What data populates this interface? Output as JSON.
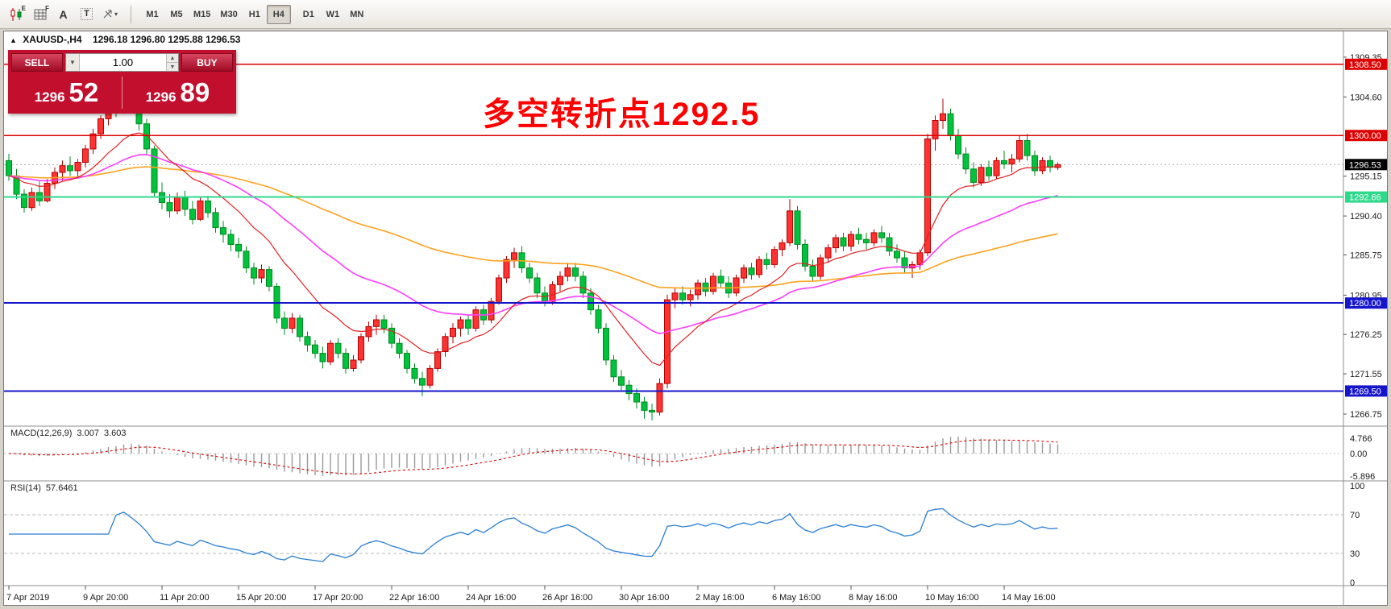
{
  "toolbar": {
    "tools": [
      {
        "name": "indicators-window-icon",
        "type": "candles",
        "sup": "E"
      },
      {
        "name": "grid-window-icon",
        "type": "grid",
        "sup": "F"
      },
      {
        "name": "font-tool-icon",
        "type": "letter",
        "glyph": "A"
      },
      {
        "name": "text-tool-icon",
        "type": "boxed",
        "glyph": "T"
      },
      {
        "name": "line-style-tool-icon",
        "type": "arrow",
        "caret": "▾"
      }
    ],
    "timeframes": [
      "M1",
      "M5",
      "M15",
      "M30",
      "H1",
      "H4",
      "D1",
      "W1",
      "MN"
    ],
    "active_timeframe": "H4"
  },
  "chart": {
    "collapse_glyph": "▲",
    "title_symbol": "XAUUSD-,H4",
    "title_ohlc": "1296.18 1296.80 1295.88 1296.53",
    "annotation": "多空转折点1292.5",
    "annotation_color": "#ff0000"
  },
  "trade_panel": {
    "sell_label": "SELL",
    "buy_label": "BUY",
    "volume": "1.00",
    "bid_main": "1296",
    "bid_pips": "52",
    "ask_main": "1296",
    "ask_pips": "89",
    "panel_color": "#c30f2e"
  },
  "price_axis": {
    "labels": [
      1309.35,
      1304.6,
      1295.15,
      1290.4,
      1285.75,
      1280.95,
      1276.25,
      1271.55,
      1266.75
    ],
    "current_price": {
      "value": 1296.53,
      "label": "1296.53",
      "badge_color": "#000000"
    }
  },
  "levels": [
    {
      "value": 1308.5,
      "label": "1308.50",
      "color": "#dd0000",
      "width": 1.2
    },
    {
      "value": 1300.0,
      "label": "1300.00",
      "color": "#dd0000",
      "width": 1.2
    },
    {
      "value": 1292.66,
      "label": "1292.66",
      "color": "#2fd98c",
      "width": 2
    },
    {
      "value": 1280.0,
      "label": "1280.00",
      "color": "#1515cc",
      "width": 2
    },
    {
      "value": 1269.5,
      "label": "1269.50",
      "color": "#1515cc",
      "width": 2
    }
  ],
  "time_axis": [
    {
      "i": 0,
      "label": "7 Apr 2019"
    },
    {
      "i": 10,
      "label": "9 Apr 20:00"
    },
    {
      "i": 20,
      "label": "11 Apr 20:00"
    },
    {
      "i": 30,
      "label": "15 Apr 20:00"
    },
    {
      "i": 40,
      "label": "17 Apr 20:00"
    },
    {
      "i": 50,
      "label": "22 Apr 16:00"
    },
    {
      "i": 60,
      "label": "24 Apr 16:00"
    },
    {
      "i": 70,
      "label": "26 Apr 16:00"
    },
    {
      "i": 80,
      "label": "30 Apr 16:00"
    },
    {
      "i": 90,
      "label": "2 May 16:00"
    },
    {
      "i": 100,
      "label": "6 May 16:00"
    },
    {
      "i": 110,
      "label": "8 May 16:00"
    },
    {
      "i": 120,
      "label": "10 May 16:00"
    },
    {
      "i": 130,
      "label": "14 May 16:00"
    }
  ],
  "macd": {
    "label": "MACD(12,26,9)",
    "value_main": "3.007",
    "value_signal": "3.603",
    "axis": [
      "4.766",
      "0.00",
      "-5.896"
    ]
  },
  "rsi": {
    "label": "RSI(14)",
    "value": "57.6461",
    "axis": [
      100,
      70,
      30,
      0
    ],
    "levels": [
      70,
      30
    ]
  },
  "colors": {
    "up_fill": "#ff3232",
    "up_border": "#b40000",
    "down_fill": "#00c23c",
    "down_border": "#008a20",
    "ma_fast": "#e02020",
    "ma_mid": "#ff3cff",
    "ma_slow": "#ffa21e",
    "macd_hist": "#9a9a9a",
    "macd_signal": "#dd0000",
    "rsi_line": "#2a7fd4",
    "level_dash": "#b8b8b8"
  },
  "chart_data": {
    "type": "candlestick",
    "symbol": "XAUUSD-",
    "timeframe": "H4",
    "candles": [
      [
        1297.0,
        1297.8,
        1294.6,
        1295.2
      ],
      [
        1295.2,
        1296.0,
        1292.4,
        1293.0
      ],
      [
        1293.0,
        1293.6,
        1290.8,
        1291.4
      ],
      [
        1291.4,
        1293.8,
        1291.0,
        1293.2
      ],
      [
        1293.2,
        1294.5,
        1291.6,
        1292.2
      ],
      [
        1292.2,
        1294.8,
        1292.0,
        1294.3
      ],
      [
        1294.3,
        1296.2,
        1293.6,
        1295.6
      ],
      [
        1295.6,
        1297.0,
        1294.6,
        1296.4
      ],
      [
        1296.4,
        1297.5,
        1295.2,
        1295.8
      ],
      [
        1295.8,
        1297.2,
        1295.0,
        1296.8
      ],
      [
        1296.8,
        1298.9,
        1296.2,
        1298.4
      ],
      [
        1298.4,
        1300.8,
        1297.8,
        1300.2
      ],
      [
        1300.2,
        1302.4,
        1299.6,
        1302.0
      ],
      [
        1302.0,
        1304.2,
        1301.2,
        1303.6
      ],
      [
        1303.6,
        1305.2,
        1302.2,
        1303.0
      ],
      [
        1303.0,
        1305.6,
        1302.6,
        1305.0
      ],
      [
        1305.0,
        1305.8,
        1302.8,
        1303.4
      ],
      [
        1303.4,
        1304.0,
        1300.6,
        1301.4
      ],
      [
        1301.4,
        1302.0,
        1297.8,
        1298.4
      ],
      [
        1298.4,
        1298.8,
        1292.6,
        1293.2
      ],
      [
        1293.2,
        1294.4,
        1291.2,
        1292.0
      ],
      [
        1292.0,
        1293.0,
        1290.2,
        1291.0
      ],
      [
        1291.0,
        1293.2,
        1290.6,
        1292.6
      ],
      [
        1292.6,
        1293.4,
        1290.4,
        1291.2
      ],
      [
        1291.2,
        1292.2,
        1289.4,
        1290.0
      ],
      [
        1290.0,
        1292.6,
        1289.8,
        1292.2
      ],
      [
        1292.2,
        1292.8,
        1290.2,
        1290.8
      ],
      [
        1290.8,
        1291.4,
        1288.4,
        1289.0
      ],
      [
        1289.0,
        1289.8,
        1287.2,
        1288.2
      ],
      [
        1288.2,
        1288.8,
        1286.2,
        1287.0
      ],
      [
        1287.0,
        1287.8,
        1285.4,
        1286.2
      ],
      [
        1286.2,
        1286.8,
        1283.6,
        1284.2
      ],
      [
        1284.2,
        1284.8,
        1282.2,
        1283.0
      ],
      [
        1283.0,
        1284.6,
        1282.4,
        1284.0
      ],
      [
        1284.0,
        1284.4,
        1281.4,
        1282.0
      ],
      [
        1282.0,
        1282.4,
        1277.6,
        1278.2
      ],
      [
        1278.2,
        1279.0,
        1276.2,
        1277.0
      ],
      [
        1277.0,
        1278.8,
        1276.4,
        1278.2
      ],
      [
        1278.2,
        1278.6,
        1275.4,
        1276.0
      ],
      [
        1276.0,
        1276.6,
        1274.2,
        1275.0
      ],
      [
        1275.0,
        1275.6,
        1273.4,
        1274.0
      ],
      [
        1274.0,
        1274.8,
        1272.2,
        1273.0
      ],
      [
        1273.0,
        1275.6,
        1272.6,
        1275.2
      ],
      [
        1275.2,
        1275.8,
        1273.4,
        1274.0
      ],
      [
        1274.0,
        1274.6,
        1271.6,
        1272.2
      ],
      [
        1272.2,
        1273.8,
        1271.8,
        1273.2
      ],
      [
        1273.2,
        1276.4,
        1272.8,
        1276.0
      ],
      [
        1276.0,
        1277.8,
        1275.4,
        1277.2
      ],
      [
        1277.2,
        1278.6,
        1276.2,
        1278.0
      ],
      [
        1278.0,
        1278.6,
        1276.4,
        1277.0
      ],
      [
        1277.0,
        1277.6,
        1274.6,
        1275.2
      ],
      [
        1275.2,
        1275.8,
        1273.4,
        1274.0
      ],
      [
        1274.0,
        1274.4,
        1271.6,
        1272.2
      ],
      [
        1272.2,
        1272.8,
        1270.4,
        1271.0
      ],
      [
        1271.0,
        1271.8,
        1268.9,
        1270.2
      ],
      [
        1270.2,
        1272.6,
        1269.8,
        1272.2
      ],
      [
        1272.2,
        1274.6,
        1271.8,
        1274.2
      ],
      [
        1274.2,
        1276.4,
        1273.6,
        1276.0
      ],
      [
        1276.0,
        1277.6,
        1275.2,
        1277.0
      ],
      [
        1277.0,
        1278.4,
        1276.0,
        1278.0
      ],
      [
        1278.0,
        1278.6,
        1276.2,
        1277.0
      ],
      [
        1277.0,
        1279.6,
        1276.6,
        1279.2
      ],
      [
        1279.2,
        1279.8,
        1277.4,
        1278.0
      ],
      [
        1278.0,
        1280.6,
        1277.6,
        1280.2
      ],
      [
        1280.2,
        1283.4,
        1279.8,
        1283.0
      ],
      [
        1283.0,
        1285.6,
        1282.4,
        1285.2
      ],
      [
        1285.2,
        1286.6,
        1284.2,
        1286.0
      ],
      [
        1286.0,
        1286.8,
        1283.6,
        1284.2
      ],
      [
        1284.2,
        1284.8,
        1282.4,
        1283.0
      ],
      [
        1283.0,
        1283.6,
        1280.6,
        1281.2
      ],
      [
        1281.2,
        1282.0,
        1279.6,
        1280.2
      ],
      [
        1280.2,
        1282.6,
        1279.8,
        1282.2
      ],
      [
        1282.2,
        1283.8,
        1281.4,
        1283.2
      ],
      [
        1283.2,
        1284.8,
        1282.6,
        1284.2
      ],
      [
        1284.2,
        1284.8,
        1282.6,
        1283.2
      ],
      [
        1283.2,
        1283.8,
        1280.6,
        1281.2
      ],
      [
        1281.2,
        1281.8,
        1278.6,
        1279.2
      ],
      [
        1279.2,
        1279.8,
        1276.4,
        1277.0
      ],
      [
        1277.0,
        1277.6,
        1272.6,
        1273.2
      ],
      [
        1273.2,
        1273.8,
        1270.6,
        1271.2
      ],
      [
        1271.2,
        1272.0,
        1269.6,
        1270.2
      ],
      [
        1270.2,
        1270.8,
        1268.4,
        1269.2
      ],
      [
        1269.2,
        1269.8,
        1267.4,
        1268.2
      ],
      [
        1268.2,
        1268.8,
        1266.2,
        1267.2
      ],
      [
        1267.2,
        1268.0,
        1266.0,
        1267.0
      ],
      [
        1267.0,
        1271.0,
        1266.6,
        1270.4
      ],
      [
        1270.4,
        1281.0,
        1269.8,
        1280.4
      ],
      [
        1280.4,
        1281.8,
        1279.4,
        1281.2
      ],
      [
        1281.2,
        1282.0,
        1279.8,
        1280.4
      ],
      [
        1280.4,
        1281.6,
        1279.6,
        1281.0
      ],
      [
        1281.0,
        1282.8,
        1280.4,
        1282.4
      ],
      [
        1282.4,
        1283.0,
        1280.8,
        1281.4
      ],
      [
        1281.4,
        1283.6,
        1281.0,
        1283.2
      ],
      [
        1283.2,
        1284.0,
        1281.8,
        1282.4
      ],
      [
        1282.4,
        1283.2,
        1280.6,
        1281.2
      ],
      [
        1281.2,
        1283.4,
        1280.8,
        1283.0
      ],
      [
        1283.0,
        1284.6,
        1282.4,
        1284.2
      ],
      [
        1284.2,
        1284.8,
        1282.8,
        1283.4
      ],
      [
        1283.4,
        1285.6,
        1283.0,
        1285.2
      ],
      [
        1285.2,
        1286.0,
        1284.0,
        1284.6
      ],
      [
        1284.6,
        1286.8,
        1284.2,
        1286.4
      ],
      [
        1286.4,
        1287.6,
        1285.6,
        1287.2
      ],
      [
        1287.2,
        1292.4,
        1286.8,
        1291.0
      ],
      [
        1291.0,
        1291.6,
        1286.4,
        1287.0
      ],
      [
        1287.0,
        1287.6,
        1283.8,
        1284.4
      ],
      [
        1284.4,
        1285.2,
        1282.6,
        1283.2
      ],
      [
        1283.2,
        1285.8,
        1282.8,
        1285.4
      ],
      [
        1285.4,
        1287.0,
        1284.8,
        1286.6
      ],
      [
        1286.6,
        1288.2,
        1286.0,
        1287.8
      ],
      [
        1287.8,
        1288.4,
        1286.2,
        1286.8
      ],
      [
        1286.8,
        1288.6,
        1286.2,
        1288.2
      ],
      [
        1288.2,
        1289.0,
        1287.0,
        1287.6
      ],
      [
        1287.6,
        1288.4,
        1286.4,
        1287.2
      ],
      [
        1287.2,
        1288.8,
        1286.8,
        1288.4
      ],
      [
        1288.4,
        1289.2,
        1287.2,
        1287.8
      ],
      [
        1287.8,
        1288.4,
        1285.6,
        1286.2
      ],
      [
        1286.2,
        1287.0,
        1284.8,
        1285.4
      ],
      [
        1285.4,
        1286.2,
        1283.6,
        1284.2
      ],
      [
        1284.2,
        1285.0,
        1283.0,
        1284.6
      ],
      [
        1284.6,
        1286.4,
        1284.0,
        1286.0
      ],
      [
        1286.0,
        1300.2,
        1285.6,
        1299.6
      ],
      [
        1299.6,
        1302.4,
        1298.2,
        1301.8
      ],
      [
        1301.8,
        1304.4,
        1300.8,
        1302.6
      ],
      [
        1302.6,
        1303.2,
        1299.4,
        1300.0
      ],
      [
        1300.0,
        1300.8,
        1297.2,
        1297.8
      ],
      [
        1297.8,
        1298.6,
        1295.4,
        1296.0
      ],
      [
        1296.0,
        1296.8,
        1293.8,
        1294.4
      ],
      [
        1294.4,
        1296.6,
        1294.0,
        1296.2
      ],
      [
        1296.2,
        1297.0,
        1294.6,
        1295.2
      ],
      [
        1295.2,
        1297.4,
        1294.8,
        1297.0
      ],
      [
        1297.0,
        1298.2,
        1296.0,
        1296.6
      ],
      [
        1296.6,
        1297.8,
        1295.6,
        1297.2
      ],
      [
        1297.2,
        1300.0,
        1296.8,
        1299.4
      ],
      [
        1299.4,
        1300.2,
        1297.0,
        1297.6
      ],
      [
        1297.6,
        1298.2,
        1295.2,
        1295.8
      ],
      [
        1295.8,
        1297.4,
        1295.4,
        1297.0
      ],
      [
        1297.0,
        1297.6,
        1295.6,
        1296.2
      ],
      [
        1296.18,
        1296.8,
        1295.88,
        1296.53
      ]
    ]
  }
}
